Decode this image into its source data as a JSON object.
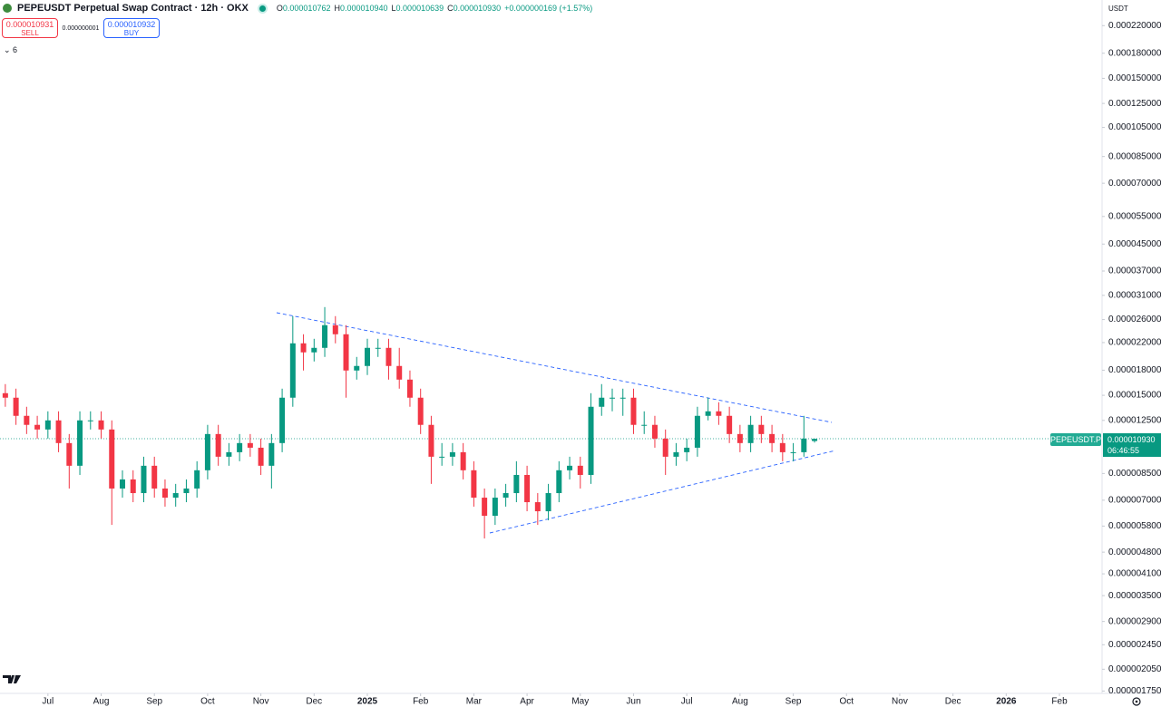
{
  "header": {
    "title": "PEPEUSDT Perpetual Swap Contract · 12h · OKX",
    "ohlc": [
      {
        "key": "O",
        "value": "0.000010762"
      },
      {
        "key": "H",
        "value": "0.000010940"
      },
      {
        "key": "L",
        "value": "0.000010639"
      },
      {
        "key": "C",
        "value": "0.000010930"
      }
    ],
    "change": "+0.000000169 (+1.57%)"
  },
  "trade": {
    "sell_price": "0.000010931",
    "sell_label": "SELL",
    "spread": "0.000000001",
    "buy_price": "0.000010932",
    "buy_label": "BUY"
  },
  "indicators_toggle": "6",
  "currency": "USDT",
  "price_tag": {
    "symbol": "PEPEUSDT.P",
    "price": "0.000010930",
    "countdown": "06:46:55"
  },
  "chart_data": {
    "type": "candlestick",
    "log": true,
    "grid": false,
    "up_color": "#089981",
    "down_color": "#f23645",
    "xlim": [
      6.1,
      26.8
    ],
    "xticks": [
      {
        "value": 7,
        "label": "Jul"
      },
      {
        "value": 8,
        "label": "Aug"
      },
      {
        "value": 9,
        "label": "Sep"
      },
      {
        "value": 10,
        "label": "Oct"
      },
      {
        "value": 11,
        "label": "Nov"
      },
      {
        "value": 12,
        "label": "Dec"
      },
      {
        "value": 13,
        "label": "2025"
      },
      {
        "value": 14,
        "label": "Feb"
      },
      {
        "value": 15,
        "label": "Mar"
      },
      {
        "value": 16,
        "label": "Apr"
      },
      {
        "value": 17,
        "label": "May"
      },
      {
        "value": 18,
        "label": "Jun"
      },
      {
        "value": 19,
        "label": "Jul"
      },
      {
        "value": 20,
        "label": "Aug"
      },
      {
        "value": 21,
        "label": "Sep"
      },
      {
        "value": 22,
        "label": "Oct"
      },
      {
        "value": 23,
        "label": "Nov"
      },
      {
        "value": 24,
        "label": "Dec"
      },
      {
        "value": 25,
        "label": "2026"
      },
      {
        "value": 26,
        "label": "Feb"
      }
    ],
    "ylim": [
      1.72e-06,
      0.000265
    ],
    "yticks": [
      {
        "value": 0.00022,
        "label": "0.000220000"
      },
      {
        "value": 0.00018,
        "label": "0.000180000"
      },
      {
        "value": 0.00015,
        "label": "0.000150000"
      },
      {
        "value": 0.000125,
        "label": "0.000125000"
      },
      {
        "value": 0.000105,
        "label": "0.000105000"
      },
      {
        "value": 8.5e-05,
        "label": "0.000085000"
      },
      {
        "value": 7e-05,
        "label": "0.000070000"
      },
      {
        "value": 5.5e-05,
        "label": "0.000055000"
      },
      {
        "value": 4.5e-05,
        "label": "0.000045000"
      },
      {
        "value": 3.7e-05,
        "label": "0.000037000"
      },
      {
        "value": 3.1e-05,
        "label": "0.000031000"
      },
      {
        "value": 2.6e-05,
        "label": "0.000026000"
      },
      {
        "value": 2.2e-05,
        "label": "0.000022000"
      },
      {
        "value": 1.8e-05,
        "label": "0.000018000"
      },
      {
        "value": 1.5e-05,
        "label": "0.000015000"
      },
      {
        "value": 1.25e-05,
        "label": "0.000012500"
      },
      {
        "value": 8.5e-06,
        "label": "0.000008500"
      },
      {
        "value": 7e-06,
        "label": "0.000007000"
      },
      {
        "value": 5.8e-06,
        "label": "0.000005800"
      },
      {
        "value": 4.8e-06,
        "label": "0.000004800"
      },
      {
        "value": 4.1e-06,
        "label": "0.000004100"
      },
      {
        "value": 3.5e-06,
        "label": "0.000003500"
      },
      {
        "value": 2.9e-06,
        "label": "0.000002900"
      },
      {
        "value": 2.45e-06,
        "label": "0.000002450"
      },
      {
        "value": 2.05e-06,
        "label": "0.000002050"
      },
      {
        "value": 1.75e-06,
        "label": "0.000001750"
      }
    ],
    "x": [
      6.2,
      6.4,
      6.6,
      6.8,
      7,
      7.2,
      7.4,
      7.6,
      7.8,
      8,
      8.2,
      8.4,
      8.6,
      8.8,
      9,
      9.2,
      9.4,
      9.6,
      9.8,
      10,
      10.2,
      10.4,
      10.6,
      10.8,
      11,
      11.2,
      11.4,
      11.6,
      11.8,
      12,
      12.2,
      12.4,
      12.6,
      12.8,
      13,
      13.2,
      13.4,
      13.6,
      13.8,
      14,
      14.2,
      14.4,
      14.6,
      14.8,
      15,
      15.2,
      15.4,
      15.6,
      15.8,
      16,
      16.2,
      16.4,
      16.6,
      16.8,
      17,
      17.2,
      17.4,
      17.6,
      17.8,
      18,
      18.2,
      18.4,
      18.6,
      18.8,
      19,
      19.2,
      19.4,
      19.6,
      19.8,
      20,
      20.2,
      20.4,
      20.6,
      20.8,
      21,
      21.2,
      21.4
    ],
    "open": [
      1.523e-05,
      1.474e-05,
      1.292e-05,
      1.21e-05,
      1.17e-05,
      1.25e-05,
      1.06e-05,
      8.99e-06,
      1.25e-05,
      1.25e-05,
      1.17e-05,
      7.62e-06,
      8.14e-06,
      7.37e-06,
      8.99e-06,
      7.62e-06,
      7.13e-06,
      7.37e-06,
      7.62e-06,
      8.7e-06,
      1.132e-05,
      9.6e-06,
      9.92e-06,
      1.06e-05,
      1.025e-05,
      8.99e-06,
      1.06e-05,
      1.474e-05,
      2.188e-05,
      2.049e-05,
      2.117e-05,
      2.496e-05,
      2.337e-05,
      1.796e-05,
      1.856e-05,
      2.117e-05,
      2.117e-05,
      1.856e-05,
      1.681e-05,
      1.474e-05,
      1.21e-05,
      9.6e-06,
      9.6e-06,
      9.92e-06,
      8.7e-06,
      7.13e-06,
      6.25e-06,
      7.13e-06,
      7.37e-06,
      8.41e-06,
      6.9e-06,
      6.46e-06,
      7.37e-06,
      8.7e-06,
      8.99e-06,
      8.41e-06,
      1.38e-05,
      1.474e-05,
      1.474e-05,
      1.474e-05,
      1.21e-05,
      1.21e-05,
      1.095e-05,
      9.6e-06,
      9.92e-06,
      1.025e-05,
      1.292e-05,
      1.335e-05,
      1.292e-05,
      1.132e-05,
      1.06e-05,
      1.21e-05,
      1.132e-05,
      1.06e-05,
      9.92e-06,
      9.92e-06,
      1.076e-05
    ],
    "high": [
      1.627e-05,
      1.574e-05,
      1.38e-05,
      1.292e-05,
      1.335e-05,
      1.335e-05,
      1.132e-05,
      1.335e-05,
      1.335e-05,
      1.335e-05,
      1.25e-05,
      8.7e-06,
      8.7e-06,
      9.6e-06,
      9.6e-06,
      8.14e-06,
      7.88e-06,
      8.14e-06,
      9.29e-06,
      1.21e-05,
      1.21e-05,
      1.06e-05,
      1.132e-05,
      1.132e-05,
      1.095e-05,
      1.132e-05,
      1.574e-05,
      2.666e-05,
      2.337e-05,
      2.261e-05,
      2.847e-05,
      2.666e-05,
      2.496e-05,
      1.982e-05,
      2.261e-05,
      2.261e-05,
      2.261e-05,
      2.117e-05,
      1.796e-05,
      1.574e-05,
      1.292e-05,
      1.06e-05,
      1.06e-05,
      1.06e-05,
      9.29e-06,
      7.62e-06,
      7.62e-06,
      7.88e-06,
      9.29e-06,
      8.99e-06,
      7.37e-06,
      7.88e-06,
      9.29e-06,
      9.6e-06,
      9.6e-06,
      1.523e-05,
      1.627e-05,
      1.574e-05,
      1.574e-05,
      1.574e-05,
      1.335e-05,
      1.292e-05,
      1.17e-05,
      1.06e-05,
      1.095e-05,
      1.38e-05,
      1.474e-05,
      1.426e-05,
      1.38e-05,
      1.21e-05,
      1.292e-05,
      1.292e-05,
      1.21e-05,
      1.132e-05,
      1.06e-05,
      1.292e-05,
      1.094e-05
    ],
    "low": [
      1.38e-05,
      1.21e-05,
      1.132e-05,
      1.095e-05,
      1.095e-05,
      9.92e-06,
      7.62e-06,
      8.41e-06,
      1.17e-05,
      1.095e-05,
      5.85e-06,
      7.13e-06,
      6.9e-06,
      6.9e-06,
      7.13e-06,
      6.68e-06,
      6.68e-06,
      6.9e-06,
      7.13e-06,
      8.14e-06,
      8.99e-06,
      8.99e-06,
      9.29e-06,
      9.6e-06,
      8.41e-06,
      7.62e-06,
      9.92e-06,
      1.38e-05,
      1.796e-05,
      1.918e-05,
      1.982e-05,
      2.188e-05,
      1.474e-05,
      1.681e-05,
      1.738e-05,
      1.982e-05,
      1.681e-05,
      1.574e-05,
      1.38e-05,
      1.132e-05,
      7.88e-06,
      8.99e-06,
      8.99e-06,
      8.14e-06,
      6.68e-06,
      5.3e-06,
      5.85e-06,
      6.68e-06,
      6.9e-06,
      6.46e-06,
      5.85e-06,
      6.05e-06,
      6.9e-06,
      8.14e-06,
      7.62e-06,
      7.88e-06,
      1.292e-05,
      1.335e-05,
      1.292e-05,
      1.132e-05,
      1.132e-05,
      1.025e-05,
      8.41e-06,
      8.99e-06,
      9.29e-06,
      9.6e-06,
      1.25e-05,
      1.21e-05,
      1.06e-05,
      9.92e-06,
      9.92e-06,
      1.06e-05,
      9.92e-06,
      9.29e-06,
      9.29e-06,
      9.6e-06,
      1.064e-05
    ],
    "close": [
      1.474e-05,
      1.292e-05,
      1.21e-05,
      1.17e-05,
      1.25e-05,
      1.06e-05,
      8.99e-06,
      1.25e-05,
      1.25e-05,
      1.17e-05,
      7.62e-06,
      8.14e-06,
      7.37e-06,
      8.99e-06,
      7.62e-06,
      7.13e-06,
      7.37e-06,
      7.62e-06,
      8.7e-06,
      1.132e-05,
      9.6e-06,
      9.92e-06,
      1.06e-05,
      1.025e-05,
      8.99e-06,
      1.06e-05,
      1.474e-05,
      2.188e-05,
      2.049e-05,
      2.117e-05,
      2.496e-05,
      2.337e-05,
      1.796e-05,
      1.856e-05,
      2.117e-05,
      2.117e-05,
      1.856e-05,
      1.681e-05,
      1.474e-05,
      1.21e-05,
      9.6e-06,
      9.6e-06,
      9.92e-06,
      8.7e-06,
      7.13e-06,
      6.25e-06,
      7.13e-06,
      7.37e-06,
      8.41e-06,
      6.9e-06,
      6.46e-06,
      7.37e-06,
      8.7e-06,
      8.99e-06,
      8.41e-06,
      1.38e-05,
      1.474e-05,
      1.474e-05,
      1.474e-05,
      1.21e-05,
      1.21e-05,
      1.095e-05,
      9.6e-06,
      9.92e-06,
      1.025e-05,
      1.292e-05,
      1.335e-05,
      1.292e-05,
      1.132e-05,
      1.06e-05,
      1.21e-05,
      1.132e-05,
      1.06e-05,
      9.92e-06,
      9.92e-06,
      1.095e-05,
      1.093e-05
    ]
  }
}
